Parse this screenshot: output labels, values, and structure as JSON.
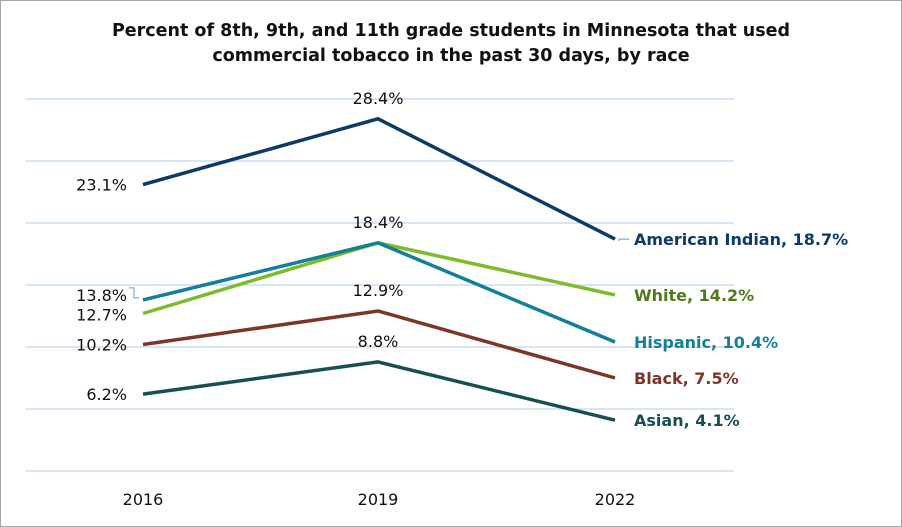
{
  "chart_data": {
    "type": "line",
    "title_lines": [
      "Percent of 8th, 9th, and 11th grade students in Minnesota that used",
      "commercial tobacco in the past 30 days, by race"
    ],
    "categories": [
      "2016",
      "2019",
      "2022"
    ],
    "ylim": [
      0,
      30
    ],
    "grid": true,
    "xlabel": "",
    "ylabel": "",
    "series": [
      {
        "name": "American Indian",
        "values": [
          23.1,
          28.4,
          18.7
        ],
        "color": "#0d3a66",
        "end_label": "American Indian, 18.7%",
        "point_labels": [
          "23.1%",
          "28.4%",
          ""
        ]
      },
      {
        "name": "White",
        "values": [
          12.7,
          18.4,
          14.2
        ],
        "color": "#7dba2c",
        "label_color": "#4f7a1a",
        "end_label": "White, 14.2%",
        "point_labels": [
          "12.7%",
          "18.4%",
          ""
        ]
      },
      {
        "name": "Hispanic",
        "values": [
          13.8,
          18.4,
          10.4
        ],
        "color": "#137f99",
        "end_label": "Hispanic, 10.4%",
        "point_labels": [
          "13.8%",
          "",
          ""
        ]
      },
      {
        "name": "Black",
        "values": [
          10.2,
          12.9,
          7.5
        ],
        "color": "#7b3628",
        "end_label": "Black, 7.5%",
        "point_labels": [
          "10.2%",
          "12.9%",
          ""
        ]
      },
      {
        "name": "Asian",
        "values": [
          6.2,
          8.8,
          4.1
        ],
        "color": "#184f52",
        "end_label": "Asian, 4.1%",
        "point_labels": [
          "6.2%",
          "8.8%",
          ""
        ]
      }
    ]
  }
}
